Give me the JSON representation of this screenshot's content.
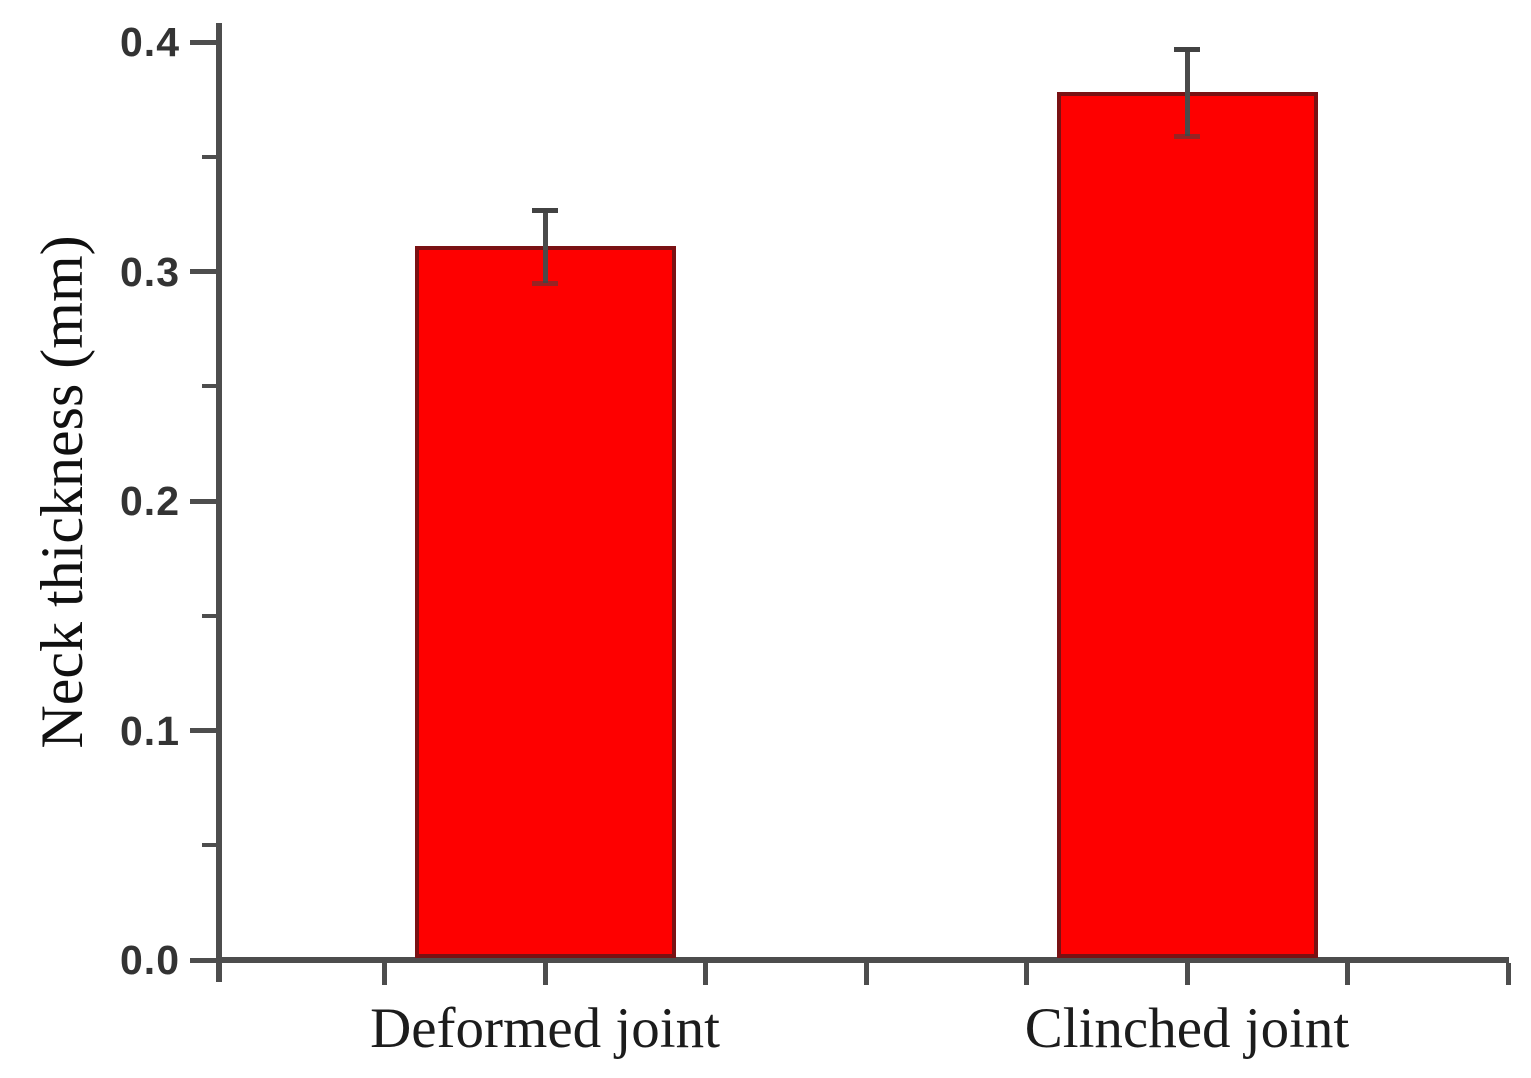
{
  "chart_data": {
    "type": "bar",
    "title": "",
    "xlabel": "",
    "ylabel": "Neck thickness (mm)",
    "categories": [
      "Deformed joint",
      "Clinched joint"
    ],
    "values": [
      0.311,
      0.378
    ],
    "errors": [
      0.016,
      0.019
    ],
    "ylim": [
      0.0,
      0.4
    ],
    "yticks": [
      0.0,
      0.1,
      0.2,
      0.3,
      0.4
    ],
    "ytick_labels": [
      "0.0",
      "0.1",
      "0.2",
      "0.3",
      "0.4"
    ],
    "ytick_minor": [
      0.05,
      0.15,
      0.25,
      0.35
    ],
    "grid": false,
    "legend_position": "none",
    "bar_color": "#fe0000",
    "bar_border_color": "#7a1113",
    "axis_color": "#4d4d4d",
    "error_bar_color": "#4a4a4a",
    "tick_label_color": "#333333",
    "category_label_color": "#1c1c1c"
  }
}
